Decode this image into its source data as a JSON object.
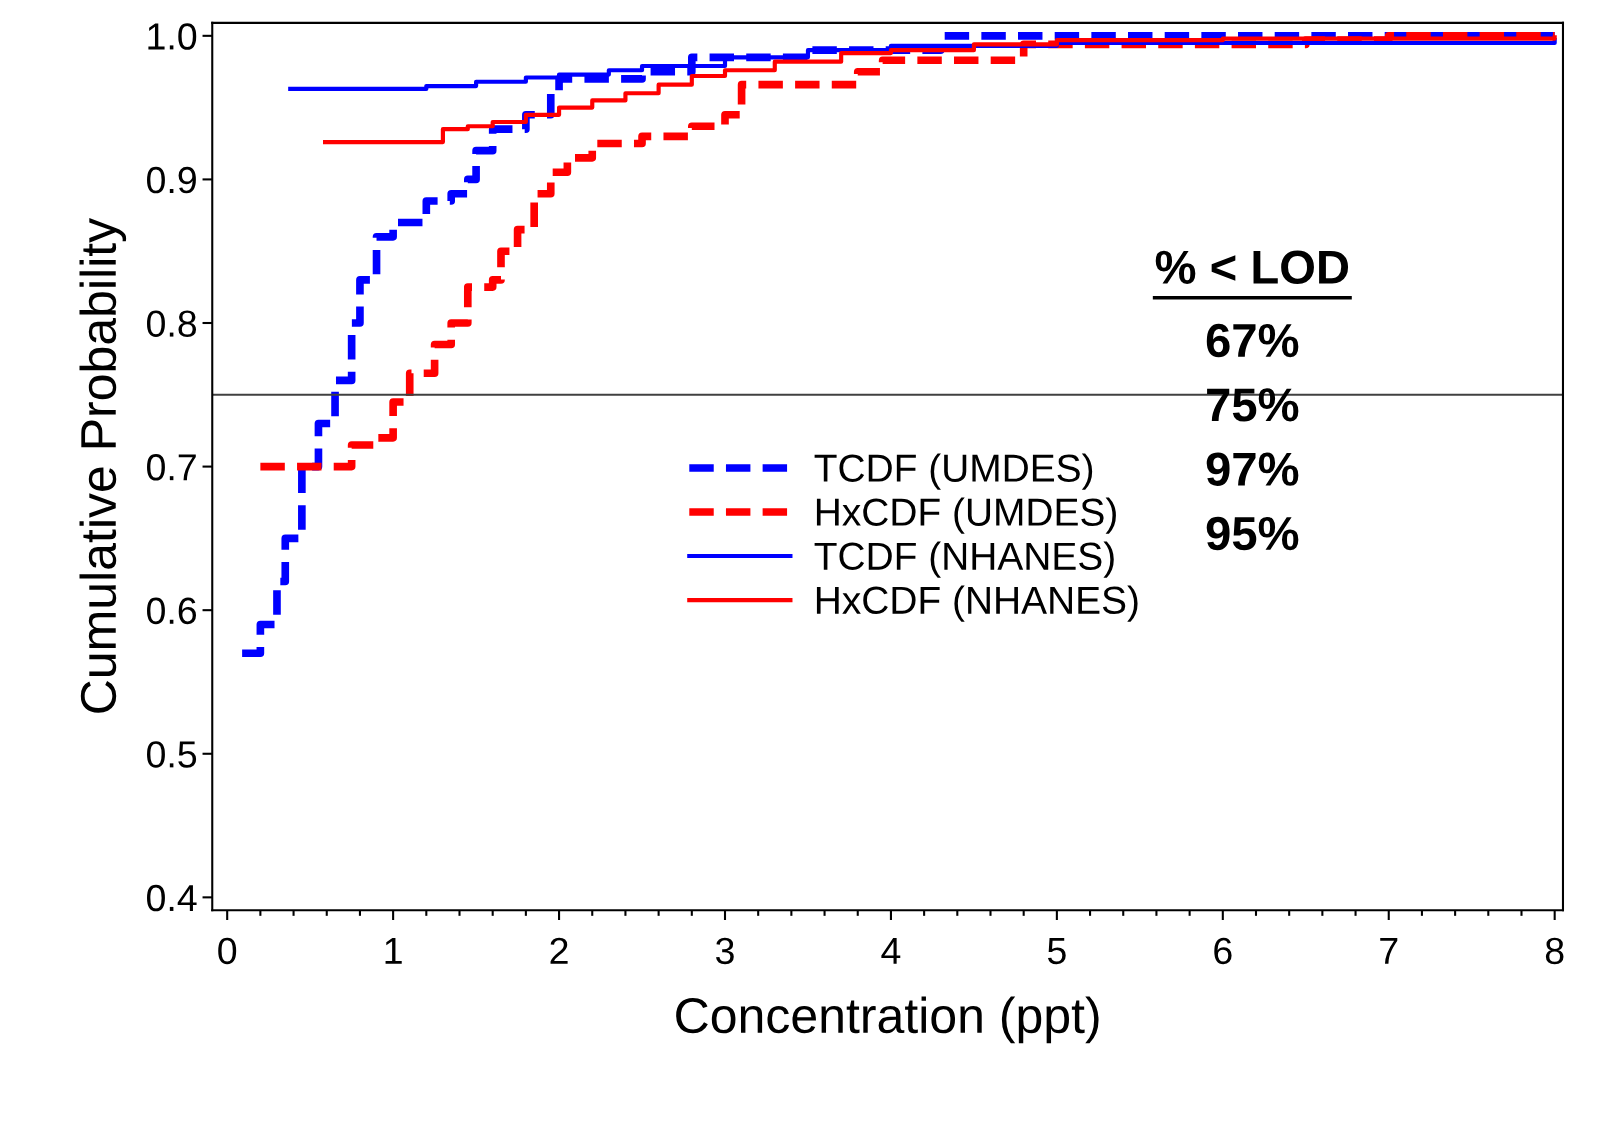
{
  "chart_data": {
    "type": "step",
    "xlabel": "Concentration (ppt)",
    "ylabel": "Cumulative Probability",
    "xlim": [
      -0.09,
      8.05
    ],
    "ylim": [
      0.391,
      1.009
    ],
    "xticks": [
      0,
      1,
      2,
      3,
      4,
      5,
      6,
      7,
      8
    ],
    "yticks": [
      0.4,
      0.5,
      0.6,
      0.7,
      0.8,
      0.9,
      {
        "value": 1.0,
        "label": "1.0"
      }
    ],
    "grid": false,
    "legend": "center",
    "marker": "none",
    "ref_lines": [
      {
        "axis": "y",
        "value": 0.75,
        "color": "#404040"
      }
    ],
    "annotations": [
      "% < LOD",
      "67%",
      "75%",
      "97%",
      "95%"
    ],
    "series": [
      {
        "name": "TCDF (UMDES)",
        "color": "#0000ff",
        "line_style": "dashed",
        "x": [
          0.09,
          0.2,
          0.3,
          0.35,
          0.45,
          0.55,
          0.65,
          0.75,
          0.8,
          0.9,
          1.0,
          1.2,
          1.35,
          1.45,
          1.5,
          1.6,
          1.8,
          1.95,
          2.0,
          2.5,
          2.8,
          3.5,
          4.3,
          8.0
        ],
        "values": [
          0.57,
          0.59,
          0.62,
          0.65,
          0.7,
          0.73,
          0.76,
          0.8,
          0.83,
          0.86,
          0.87,
          0.885,
          0.89,
          0.9,
          0.92,
          0.935,
          0.945,
          0.96,
          0.97,
          0.975,
          0.985,
          0.99,
          1.0,
          1.0
        ]
      },
      {
        "name": "HxCDF (UMDES)",
        "color": "#ff0000",
        "line_style": "dashed",
        "x": [
          0.2,
          0.75,
          0.9,
          1.0,
          1.1,
          1.25,
          1.35,
          1.45,
          1.6,
          1.65,
          1.75,
          1.85,
          1.95,
          2.05,
          2.2,
          2.5,
          2.8,
          3.0,
          3.1,
          3.8,
          3.95,
          4.8,
          6.5,
          7.0,
          8.0
        ],
        "values": [
          0.7,
          0.715,
          0.72,
          0.745,
          0.765,
          0.785,
          0.8,
          0.825,
          0.83,
          0.85,
          0.865,
          0.89,
          0.905,
          0.915,
          0.925,
          0.93,
          0.937,
          0.945,
          0.966,
          0.975,
          0.983,
          0.994,
          0.997,
          1.0,
          1.0
        ]
      },
      {
        "name": "TCDF (NHANES)",
        "color": "#0000ff",
        "line_style": "solid",
        "x": [
          0.38,
          1.2,
          1.5,
          1.8,
          2.0,
          2.3,
          2.5,
          3.0,
          3.5,
          4.0,
          5.0,
          8.0
        ],
        "values": [
          0.963,
          0.965,
          0.968,
          0.971,
          0.973,
          0.976,
          0.979,
          0.985,
          0.99,
          0.993,
          0.995,
          0.997
        ]
      },
      {
        "name": "HxCDF (NHANES)",
        "color": "#ff0000",
        "line_style": "solid",
        "x": [
          0.59,
          1.3,
          1.45,
          1.6,
          1.8,
          2.0,
          2.2,
          2.4,
          2.6,
          2.8,
          3.0,
          3.3,
          3.7,
          4.0,
          4.5,
          5.0,
          6.0,
          8.0
        ],
        "values": [
          0.926,
          0.935,
          0.937,
          0.94,
          0.945,
          0.95,
          0.955,
          0.96,
          0.966,
          0.972,
          0.976,
          0.982,
          0.988,
          0.99,
          0.994,
          0.997,
          0.998,
          0.999
        ]
      }
    ]
  }
}
